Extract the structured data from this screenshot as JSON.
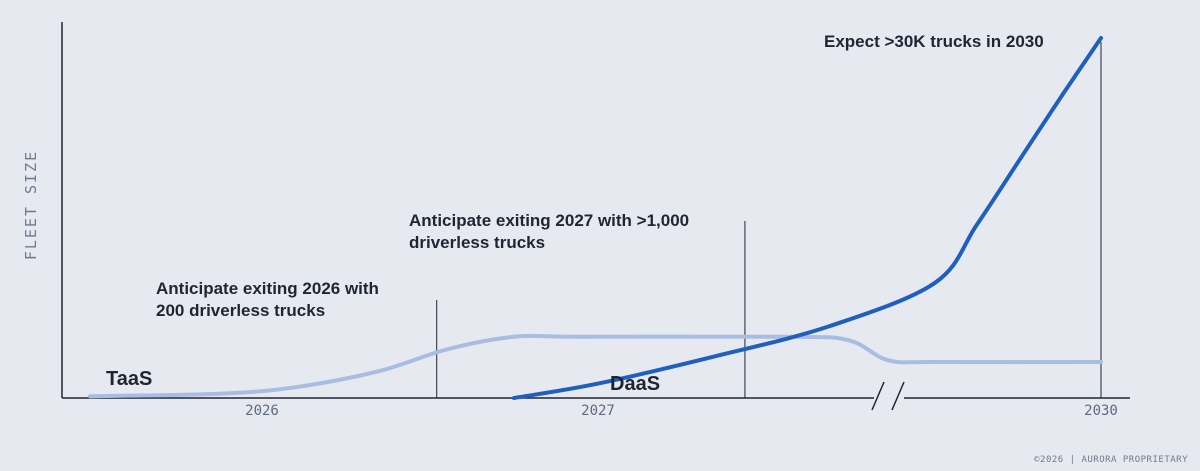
{
  "chart_data": {
    "type": "line",
    "ylabel": "FLEET SIZE",
    "x_ticks": [
      "2026",
      "2027",
      "2030"
    ],
    "x_axis_break": true,
    "series": [
      {
        "name": "TaaS",
        "color": "#a9bde3",
        "x": [
          2025.6,
          2025.9,
          2026.1,
          2026.35,
          2026.55,
          2026.75,
          2026.95,
          2027.5,
          2027.65,
          2027.75,
          2028.0,
          2030.0
        ],
        "y": [
          0.5,
          1.2,
          3.0,
          7.5,
          13.5,
          17.0,
          17.0,
          17.0,
          16.0,
          10.5,
          10.0,
          10.0
        ]
      },
      {
        "name": "DaaS",
        "color": "#1f5fbe",
        "x": [
          2026.75,
          2027.0,
          2027.3,
          2027.6,
          2028.0,
          2028.5,
          2029.0,
          2029.5,
          2030.0
        ],
        "y": [
          0.0,
          4.0,
          11.5,
          20.0,
          32.0,
          48.0,
          65.5,
          83.0,
          100.0
        ]
      }
    ],
    "annotations": [
      {
        "text": "Anticipate exiting 2026 with 200 driverless trucks",
        "line1": "Anticipate exiting 2026 with",
        "line2": "200 driverless trucks",
        "x": 2026.52
      },
      {
        "text": "Anticipate exiting 2027 with >1,000 driverless trucks",
        "line1": "Anticipate exiting 2027 with >1,000",
        "line2": "driverless trucks",
        "x": 2027.38
      },
      {
        "text": "Expect >30K trucks in 2030",
        "line1": "Expect >30K trucks in 2030",
        "line2": "",
        "x": 2030.0
      }
    ]
  },
  "footer": "©2026 | AURORA PROPRIETARY"
}
